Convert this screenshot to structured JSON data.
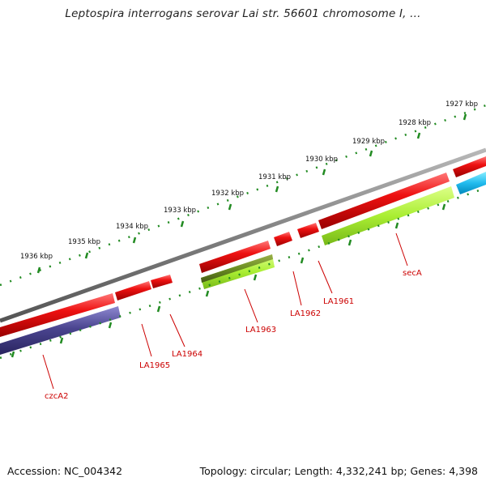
{
  "title": "Leptospira interrogans serovar Lai str. 56601 chromosome I, ...",
  "footer": {
    "accession": "Accession: NC_004342",
    "topology": "Topology: circular; Length: 4,332,241 bp; Genes: 4,398"
  },
  "colors": {
    "backbone": "#808080",
    "gene_red": "#ee1111",
    "gene_green": "#aaee33",
    "gene_dark_green": "#6b8e23",
    "gene_purple": "#4b4590",
    "gene_cyan": "#22bbee",
    "tick_green": "#228b22",
    "label_red": "#cc0000"
  },
  "scale_labels": [
    "1927 kbp",
    "1928 kbp",
    "1929 kbp",
    "1930 kbp",
    "1931 kbp",
    "1932 kbp",
    "1933 kbp",
    "1934 kbp",
    "1935 kbp",
    "1936 kbp"
  ],
  "gene_labels": [
    "secA",
    "LA1961",
    "LA1962",
    "LA1963",
    "LA1964",
    "LA1965",
    "czcA2"
  ]
}
